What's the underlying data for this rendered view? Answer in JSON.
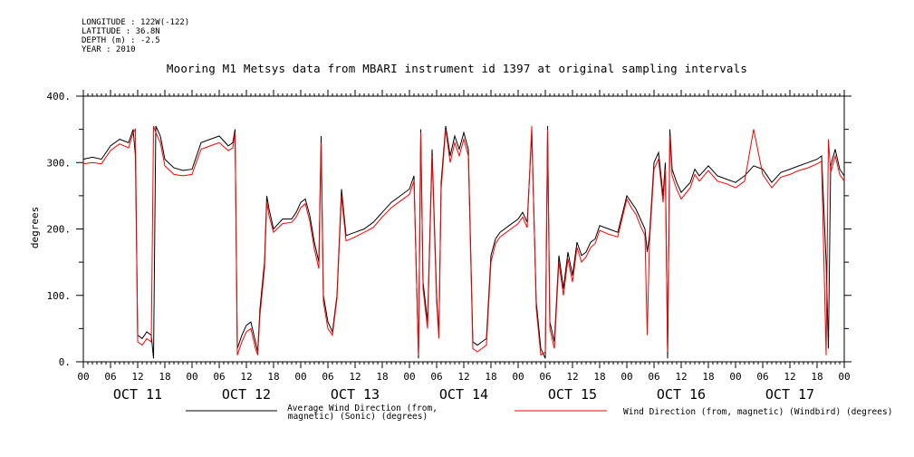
{
  "header": {
    "lines": [
      "LONGITUDE : 122W(-122)",
      "LATITUDE : 36.8N",
      "DEPTH (m) : -2.5",
      "YEAR : 2010"
    ]
  },
  "chart_data": {
    "type": "line",
    "title": "Mooring M1 Metsys data from MBARI instrument id 1397 at original sampling intervals",
    "ylabel": "degrees",
    "ylim": [
      0,
      400
    ],
    "yticks": [
      0,
      100,
      200,
      300,
      400
    ],
    "ytick_labels": [
      "0.",
      "100.",
      "200.",
      "300.",
      "400."
    ],
    "xlim_hours": [
      0,
      168
    ],
    "hour_tick_labels": [
      "00",
      "06",
      "12",
      "18",
      "00",
      "06",
      "12",
      "18",
      "00",
      "06",
      "12",
      "18",
      "00",
      "06",
      "12",
      "18",
      "00",
      "06",
      "12",
      "18",
      "00",
      "06",
      "12",
      "18",
      "00",
      "06",
      "12",
      "18",
      "00"
    ],
    "day_labels": [
      "OCT 11",
      "OCT 12",
      "OCT 13",
      "OCT 14",
      "OCT 15",
      "OCT 16",
      "OCT 17"
    ],
    "series": [
      {
        "name": "Average Wind Direction (from, magnetic) (Sonic) (degrees)",
        "color": "#000000",
        "points": [
          [
            0,
            305
          ],
          [
            2,
            308
          ],
          [
            4,
            305
          ],
          [
            6,
            325
          ],
          [
            8,
            335
          ],
          [
            10,
            330
          ],
          [
            11,
            350
          ],
          [
            11.5,
            310
          ],
          [
            12,
            40
          ],
          [
            13,
            35
          ],
          [
            14,
            45
          ],
          [
            15,
            40
          ],
          [
            15.5,
            5
          ],
          [
            16,
            355
          ],
          [
            17,
            340
          ],
          [
            18,
            305
          ],
          [
            20,
            292
          ],
          [
            22,
            288
          ],
          [
            24,
            290
          ],
          [
            24.5,
            300
          ],
          [
            26,
            330
          ],
          [
            28,
            335
          ],
          [
            30,
            340
          ],
          [
            32,
            325
          ],
          [
            33,
            330
          ],
          [
            33.5,
            350
          ],
          [
            34,
            20
          ],
          [
            35,
            40
          ],
          [
            36,
            55
          ],
          [
            37,
            60
          ],
          [
            38,
            30
          ],
          [
            38.5,
            15
          ],
          [
            39,
            80
          ],
          [
            40,
            150
          ],
          [
            40.5,
            250
          ],
          [
            41,
            230
          ],
          [
            42,
            200
          ],
          [
            44,
            215
          ],
          [
            46,
            215
          ],
          [
            47,
            225
          ],
          [
            48,
            240
          ],
          [
            49,
            245
          ],
          [
            50,
            220
          ],
          [
            51,
            180
          ],
          [
            52,
            150
          ],
          [
            52.5,
            340
          ],
          [
            53,
            100
          ],
          [
            54,
            60
          ],
          [
            55,
            45
          ],
          [
            56,
            100
          ],
          [
            57,
            260
          ],
          [
            58,
            190
          ],
          [
            60,
            195
          ],
          [
            62,
            200
          ],
          [
            64,
            210
          ],
          [
            66,
            225
          ],
          [
            68,
            240
          ],
          [
            70,
            250
          ],
          [
            72,
            260
          ],
          [
            73,
            280
          ],
          [
            74,
            5
          ],
          [
            74.5,
            350
          ],
          [
            75,
            120
          ],
          [
            76,
            60
          ],
          [
            77,
            320
          ],
          [
            78,
            100
          ],
          [
            78.5,
            40
          ],
          [
            79,
            270
          ],
          [
            80,
            355
          ],
          [
            81,
            310
          ],
          [
            82,
            340
          ],
          [
            83,
            320
          ],
          [
            84,
            345
          ],
          [
            85,
            320
          ],
          [
            86,
            30
          ],
          [
            87,
            25
          ],
          [
            88,
            30
          ],
          [
            89,
            35
          ],
          [
            90,
            160
          ],
          [
            91,
            185
          ],
          [
            92,
            195
          ],
          [
            94,
            205
          ],
          [
            96,
            215
          ],
          [
            97,
            225
          ],
          [
            98,
            210
          ],
          [
            99,
            345
          ],
          [
            100,
            90
          ],
          [
            101,
            20
          ],
          [
            102,
            5
          ],
          [
            102.5,
            355
          ],
          [
            103,
            60
          ],
          [
            104,
            30
          ],
          [
            105,
            160
          ],
          [
            106,
            110
          ],
          [
            107,
            165
          ],
          [
            108,
            130
          ],
          [
            109,
            180
          ],
          [
            110,
            160
          ],
          [
            111,
            165
          ],
          [
            112,
            180
          ],
          [
            113,
            185
          ],
          [
            114,
            205
          ],
          [
            116,
            200
          ],
          [
            118,
            195
          ],
          [
            120,
            250
          ],
          [
            121,
            240
          ],
          [
            122,
            230
          ],
          [
            123,
            215
          ],
          [
            124,
            200
          ],
          [
            124.5,
            165
          ],
          [
            125,
            190
          ],
          [
            126,
            300
          ],
          [
            127,
            315
          ],
          [
            128,
            250
          ],
          [
            128.5,
            300
          ],
          [
            129,
            5
          ],
          [
            129.5,
            350
          ],
          [
            130,
            290
          ],
          [
            131,
            270
          ],
          [
            132,
            255
          ],
          [
            134,
            270
          ],
          [
            135,
            290
          ],
          [
            136,
            280
          ],
          [
            138,
            295
          ],
          [
            140,
            280
          ],
          [
            142,
            275
          ],
          [
            144,
            270
          ],
          [
            146,
            280
          ],
          [
            148,
            295
          ],
          [
            150,
            290
          ],
          [
            152,
            270
          ],
          [
            154,
            285
          ],
          [
            156,
            290
          ],
          [
            158,
            295
          ],
          [
            160,
            300
          ],
          [
            162,
            305
          ],
          [
            163,
            310
          ],
          [
            164,
            150
          ],
          [
            164.5,
            20
          ],
          [
            165,
            295
          ],
          [
            166,
            320
          ],
          [
            167,
            290
          ],
          [
            168,
            280
          ]
        ]
      },
      {
        "name": "Wind Direction (from, magnetic) (Windbird) (degrees)",
        "color": "#ff0000",
        "points": [
          [
            0,
            298
          ],
          [
            2,
            300
          ],
          [
            4,
            298
          ],
          [
            6,
            318
          ],
          [
            8,
            328
          ],
          [
            10,
            322
          ],
          [
            11,
            345
          ],
          [
            11.5,
            350
          ],
          [
            12,
            30
          ],
          [
            13,
            25
          ],
          [
            14,
            35
          ],
          [
            15,
            30
          ],
          [
            15.5,
            355
          ],
          [
            16,
            345
          ],
          [
            17,
            330
          ],
          [
            18,
            295
          ],
          [
            20,
            282
          ],
          [
            22,
            280
          ],
          [
            24,
            282
          ],
          [
            24.5,
            292
          ],
          [
            26,
            320
          ],
          [
            28,
            325
          ],
          [
            30,
            330
          ],
          [
            32,
            318
          ],
          [
            33,
            322
          ],
          [
            33.5,
            345
          ],
          [
            34,
            10
          ],
          [
            35,
            30
          ],
          [
            36,
            45
          ],
          [
            37,
            50
          ],
          [
            38,
            20
          ],
          [
            38.5,
            10
          ],
          [
            39,
            70
          ],
          [
            40,
            140
          ],
          [
            40.5,
            240
          ],
          [
            41,
            220
          ],
          [
            42,
            195
          ],
          [
            44,
            208
          ],
          [
            46,
            210
          ],
          [
            47,
            218
          ],
          [
            48,
            232
          ],
          [
            49,
            238
          ],
          [
            50,
            212
          ],
          [
            51,
            170
          ],
          [
            52,
            140
          ],
          [
            52.5,
            330
          ],
          [
            53,
            90
          ],
          [
            54,
            50
          ],
          [
            55,
            40
          ],
          [
            56,
            95
          ],
          [
            57,
            250
          ],
          [
            58,
            182
          ],
          [
            60,
            188
          ],
          [
            62,
            195
          ],
          [
            64,
            202
          ],
          [
            66,
            218
          ],
          [
            68,
            232
          ],
          [
            70,
            242
          ],
          [
            72,
            252
          ],
          [
            73,
            272
          ],
          [
            74,
            10
          ],
          [
            74.5,
            345
          ],
          [
            75,
            110
          ],
          [
            76,
            50
          ],
          [
            77,
            310
          ],
          [
            78,
            90
          ],
          [
            78.5,
            35
          ],
          [
            79,
            260
          ],
          [
            80,
            350
          ],
          [
            81,
            300
          ],
          [
            82,
            330
          ],
          [
            83,
            310
          ],
          [
            84,
            335
          ],
          [
            85,
            310
          ],
          [
            86,
            20
          ],
          [
            87,
            15
          ],
          [
            88,
            20
          ],
          [
            89,
            25
          ],
          [
            90,
            150
          ],
          [
            91,
            178
          ],
          [
            92,
            188
          ],
          [
            94,
            198
          ],
          [
            96,
            208
          ],
          [
            97,
            218
          ],
          [
            98,
            202
          ],
          [
            99,
            355
          ],
          [
            100,
            80
          ],
          [
            101,
            10
          ],
          [
            102,
            15
          ],
          [
            102.5,
            350
          ],
          [
            103,
            50
          ],
          [
            104,
            20
          ],
          [
            105,
            150
          ],
          [
            106,
            100
          ],
          [
            107,
            155
          ],
          [
            108,
            120
          ],
          [
            109,
            172
          ],
          [
            110,
            150
          ],
          [
            111,
            158
          ],
          [
            112,
            172
          ],
          [
            113,
            178
          ],
          [
            114,
            198
          ],
          [
            116,
            192
          ],
          [
            118,
            188
          ],
          [
            120,
            245
          ],
          [
            121,
            232
          ],
          [
            122,
            222
          ],
          [
            123,
            205
          ],
          [
            124,
            190
          ],
          [
            124.5,
            40
          ],
          [
            125,
            180
          ],
          [
            126,
            290
          ],
          [
            127,
            305
          ],
          [
            128,
            240
          ],
          [
            128.5,
            290
          ],
          [
            129,
            15
          ],
          [
            129.5,
            340
          ],
          [
            130,
            280
          ],
          [
            131,
            260
          ],
          [
            132,
            245
          ],
          [
            134,
            262
          ],
          [
            135,
            282
          ],
          [
            136,
            272
          ],
          [
            138,
            288
          ],
          [
            140,
            272
          ],
          [
            142,
            268
          ],
          [
            144,
            262
          ],
          [
            146,
            272
          ],
          [
            148,
            350
          ],
          [
            150,
            282
          ],
          [
            152,
            262
          ],
          [
            154,
            278
          ],
          [
            156,
            282
          ],
          [
            158,
            288
          ],
          [
            160,
            292
          ],
          [
            162,
            298
          ],
          [
            163,
            302
          ],
          [
            164,
            10
          ],
          [
            164.5,
            335
          ],
          [
            165,
            285
          ],
          [
            166,
            310
          ],
          [
            167,
            282
          ],
          [
            168,
            272
          ]
        ]
      }
    ]
  }
}
